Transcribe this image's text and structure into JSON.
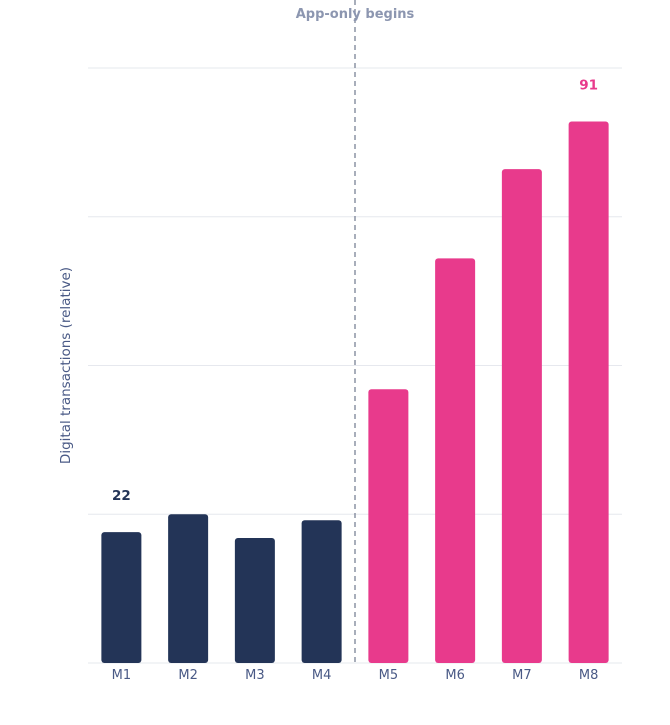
{
  "chart_data": {
    "type": "bar",
    "categories": [
      "M1",
      "M2",
      "M3",
      "M4",
      "M5",
      "M6",
      "M7",
      "M8"
    ],
    "values": [
      22,
      25,
      21,
      24,
      46,
      68,
      83,
      91
    ],
    "colors": [
      "#233457",
      "#233457",
      "#233457",
      "#233457",
      "#e83a8c",
      "#e83a8c",
      "#e83a8c",
      "#e83a8c"
    ],
    "ylabel": "Digital transactions (relative)",
    "xlabel": "",
    "ylim": [
      0,
      100
    ],
    "y_gridlines": [
      0,
      25,
      50,
      75,
      100
    ],
    "y_tick_labels_shown": false,
    "grid": "horizontal",
    "annotation": {
      "label": "App-only begins",
      "between": [
        "M4",
        "M5"
      ],
      "style": "dashed-vertical-line",
      "color": "#7a8296"
    },
    "data_labels": [
      {
        "category": "M1",
        "text": "22",
        "color": "#233457"
      },
      {
        "category": "M8",
        "text": "91",
        "color": "#e83a8c"
      }
    ]
  }
}
